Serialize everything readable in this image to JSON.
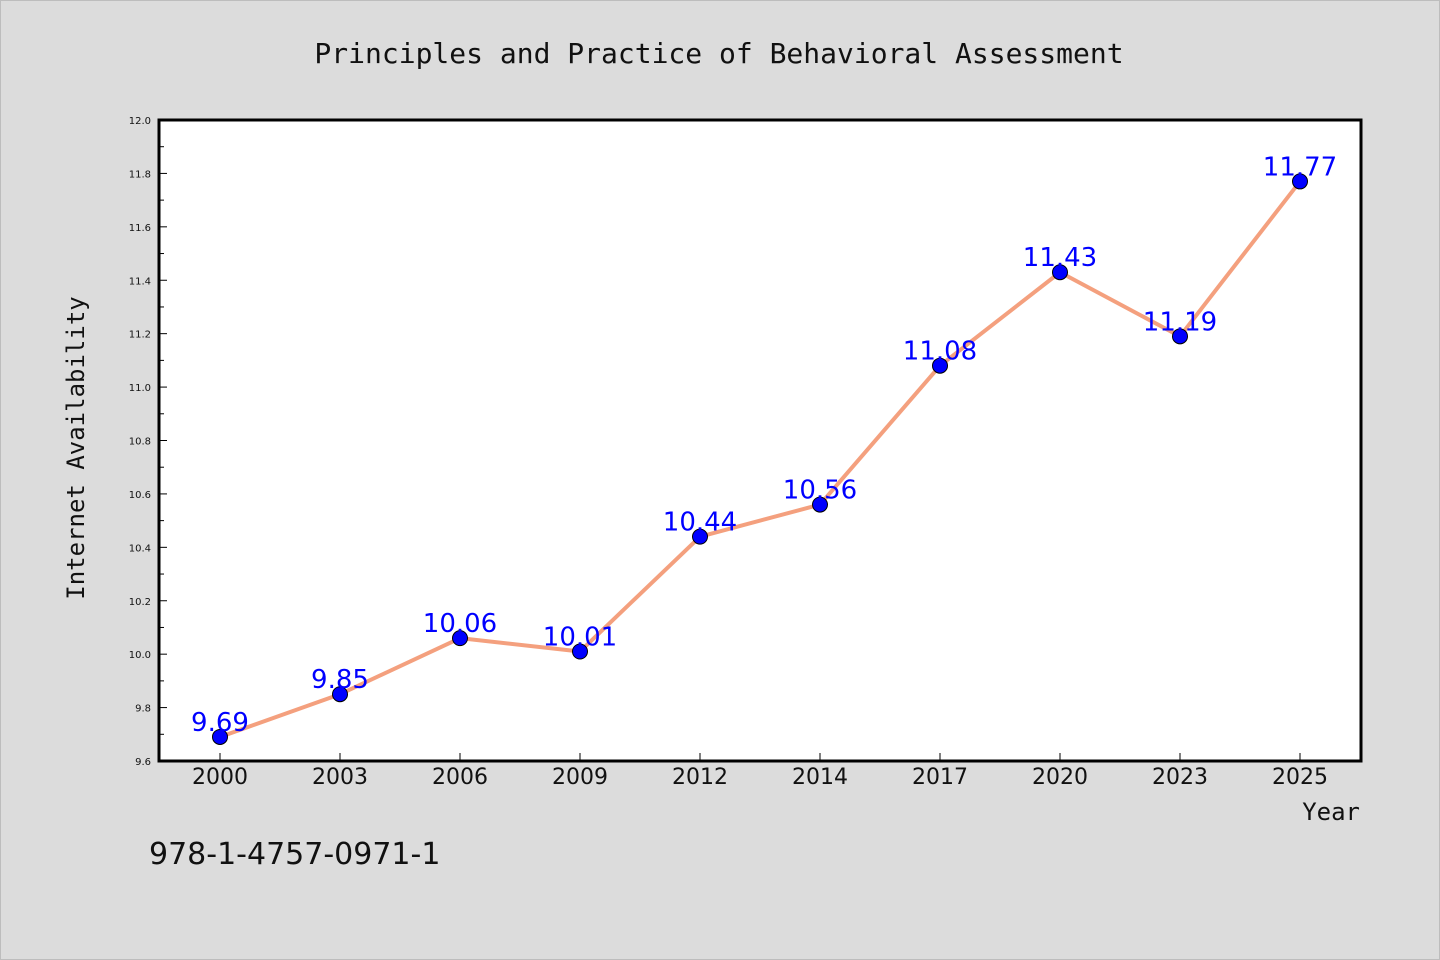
{
  "chart_data": {
    "type": "line",
    "title": "Principles and Practice of Behavioral Assessment",
    "xlabel": "Year",
    "ylabel": "Internet Availability",
    "categories": [
      "2000",
      "2003",
      "2006",
      "2009",
      "2012",
      "2014",
      "2017",
      "2020",
      "2023",
      "2025"
    ],
    "series": [
      {
        "values": [
          9.69,
          9.85,
          10.06,
          10.01,
          10.44,
          10.56,
          11.08,
          11.43,
          11.19,
          11.77
        ],
        "labels": [
          "9.69",
          "9.85",
          "10.06",
          "10.01",
          "10.44",
          "10.56",
          "11.08",
          "11.43",
          "11.19",
          "11.77"
        ],
        "line_color": "#f4a07e",
        "marker_color": "#0000ff"
      }
    ],
    "ylim": [
      9.6,
      12.0
    ],
    "yticks": [
      "9.6",
      "9.8",
      "10.0",
      "10.2",
      "10.4",
      "10.6",
      "10.8",
      "11.0",
      "11.2",
      "11.4",
      "11.6",
      "11.8",
      "12.0"
    ],
    "grid": false,
    "legend": "none"
  },
  "footnote": "978-1-4757-0971-1",
  "colors": {
    "background": "#dcdcdc",
    "plot_background": "#ffffff",
    "data_label": "#0000ff"
  }
}
